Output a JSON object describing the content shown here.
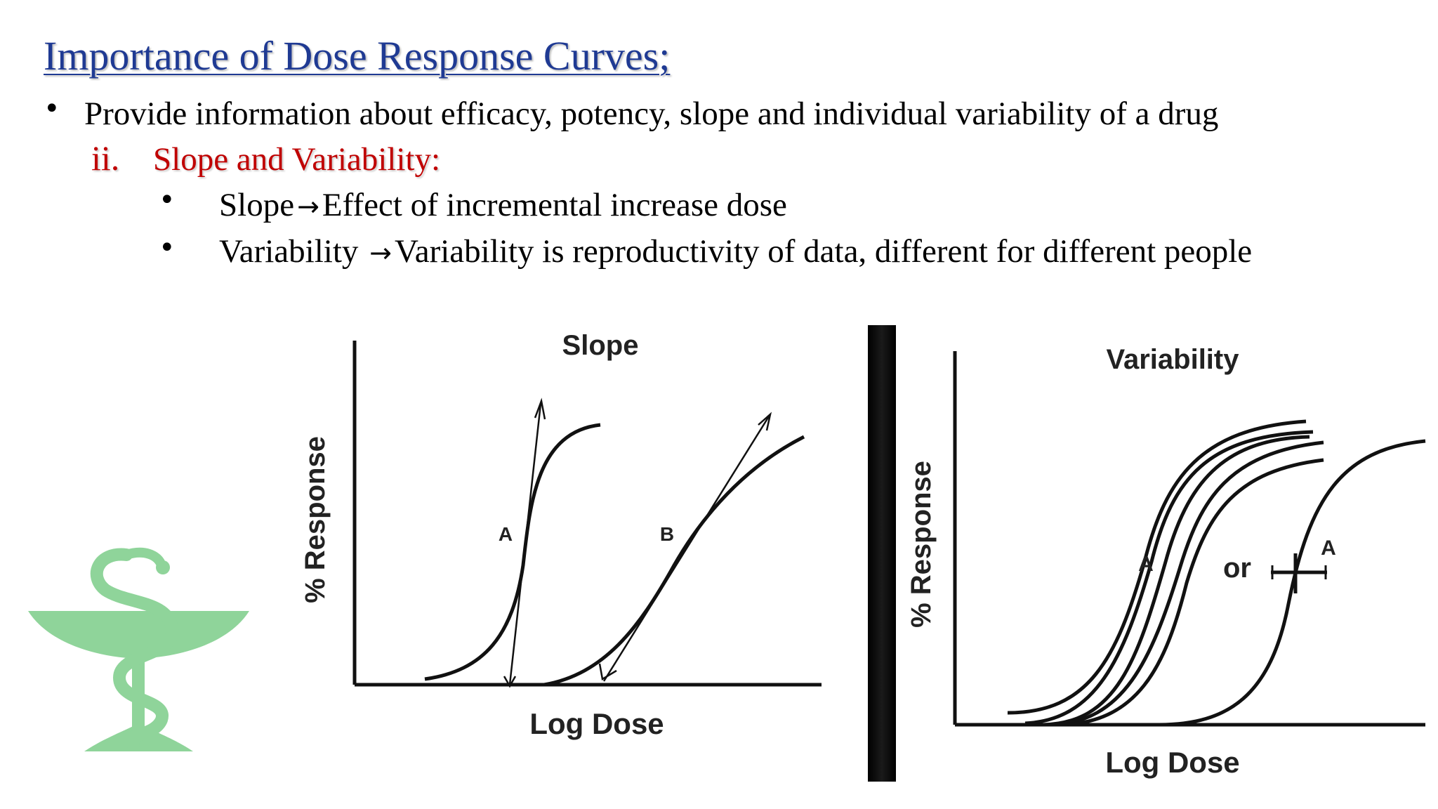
{
  "slide": {
    "title": "Importance of Dose Response Curves;",
    "bullet_1": "Provide information about efficacy, potency, slope and individual variability of a drug",
    "subheading_number": "ii.",
    "subheading_text": "Slope and Variability:",
    "sub_bullet_1": {
      "term": "Slope",
      "definition": "Effect of incremental increase dose"
    },
    "sub_bullet_2": {
      "term": "Variability",
      "definition": "Variability is reproductivity of data, different for different people"
    },
    "bullet_icon": "bullet-dot-icon",
    "arrow_icon": "right-arrow-icon"
  },
  "figure_slope": {
    "title": "Slope",
    "ylabel": "% Response",
    "xlabel": "Log Dose",
    "curve_a_label": "A",
    "curve_b_label": "B"
  },
  "figure_variability": {
    "title": "Variability",
    "ylabel": "% Response",
    "xlabel": "Log Dose",
    "curve_a_label": "A",
    "or_label": "or",
    "curve_a2_label": "A"
  },
  "logo": {
    "icon": "bowl-of-hygieia-icon",
    "color": "#8fd49a"
  },
  "colors": {
    "title": "#1f3a93",
    "subheading": "#c00000",
    "text": "#000000"
  }
}
